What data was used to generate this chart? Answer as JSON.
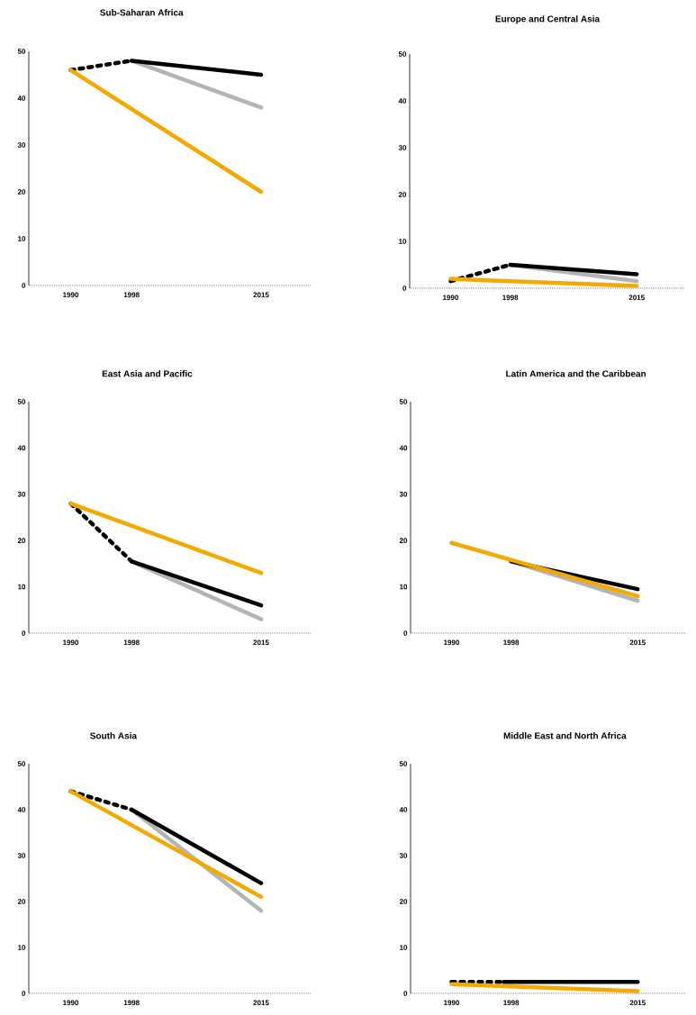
{
  "chart_data": [
    {
      "type": "line",
      "title": "Sub-Saharan Africa",
      "xlim": [
        1984.5,
        2021.5
      ],
      "ylim": [
        0,
        50
      ],
      "xticks": [
        1990,
        1998,
        2015
      ],
      "yticks": [
        0,
        10,
        20,
        30,
        40,
        50
      ],
      "series": [
        {
          "color": "#000000",
          "line_style": "dotted",
          "x": [
            1990,
            1998
          ],
          "values": [
            46,
            48
          ]
        },
        {
          "color": "#b4b4b4",
          "line_style": "solid",
          "x": [
            1998,
            2015
          ],
          "values": [
            48,
            38
          ]
        },
        {
          "color": "#000000",
          "line_style": "solid",
          "x": [
            1998,
            2015
          ],
          "values": [
            48,
            45
          ]
        },
        {
          "color": "#f5a800",
          "line_style": "solid",
          "x": [
            1990,
            2015
          ],
          "values": [
            46,
            20
          ]
        }
      ]
    },
    {
      "type": "line",
      "title": "Europe and Central Asia",
      "xlim": [
        1984.5,
        2021.5
      ],
      "ylim": [
        0,
        50
      ],
      "xticks": [
        1990,
        1998,
        2015
      ],
      "yticks": [
        0,
        10,
        20,
        30,
        40,
        50
      ],
      "series": [
        {
          "color": "#000000",
          "line_style": "dotted",
          "x": [
            1990,
            1998
          ],
          "values": [
            1.5,
            5
          ]
        },
        {
          "color": "#b4b4b4",
          "line_style": "solid",
          "x": [
            1998,
            2015
          ],
          "values": [
            5,
            1.5
          ]
        },
        {
          "color": "#000000",
          "line_style": "solid",
          "x": [
            1998,
            2015
          ],
          "values": [
            5,
            3
          ]
        },
        {
          "color": "#f5a800",
          "line_style": "solid",
          "x": [
            1990,
            2015
          ],
          "values": [
            2,
            0.5
          ]
        }
      ]
    },
    {
      "type": "line",
      "title": "East Asia and Pacific",
      "xlim": [
        1984.5,
        2021.5
      ],
      "ylim": [
        0,
        50
      ],
      "xticks": [
        1990,
        1998,
        2015
      ],
      "yticks": [
        0,
        10,
        20,
        30,
        40,
        50
      ],
      "series": [
        {
          "color": "#000000",
          "line_style": "dotted",
          "x": [
            1990,
            1998
          ],
          "values": [
            28,
            15.5
          ]
        },
        {
          "color": "#b4b4b4",
          "line_style": "solid",
          "x": [
            1998,
            2015
          ],
          "values": [
            15.5,
            3
          ]
        },
        {
          "color": "#000000",
          "line_style": "solid",
          "x": [
            1998,
            2015
          ],
          "values": [
            15.5,
            6
          ]
        },
        {
          "color": "#f5a800",
          "line_style": "solid",
          "x": [
            1990,
            2015
          ],
          "values": [
            28,
            13
          ]
        }
      ]
    },
    {
      "type": "line",
      "title": "Latin America and the Caribbean",
      "xlim": [
        1984.5,
        2021.5
      ],
      "ylim": [
        0,
        50
      ],
      "xticks": [
        1990,
        1998,
        2015
      ],
      "yticks": [
        0,
        10,
        20,
        30,
        40,
        50
      ],
      "series": [
        {
          "color": "#b4b4b4",
          "line_style": "solid",
          "x": [
            1998,
            2015
          ],
          "values": [
            15.5,
            7
          ]
        },
        {
          "color": "#000000",
          "line_style": "solid",
          "x": [
            1998,
            2015
          ],
          "values": [
            15.5,
            9.5
          ]
        },
        {
          "color": "#f5a800",
          "line_style": "solid",
          "x": [
            1990,
            2015
          ],
          "values": [
            19.5,
            8
          ]
        }
      ]
    },
    {
      "type": "line",
      "title": "South Asia",
      "xlim": [
        1984.5,
        2021.5
      ],
      "ylim": [
        0,
        50
      ],
      "xticks": [
        1990,
        1998,
        2015
      ],
      "yticks": [
        0,
        10,
        20,
        30,
        40,
        50
      ],
      "series": [
        {
          "color": "#000000",
          "line_style": "dotted",
          "x": [
            1990,
            1998
          ],
          "values": [
            44,
            40
          ]
        },
        {
          "color": "#b4b4b4",
          "line_style": "solid",
          "x": [
            1998,
            2015
          ],
          "values": [
            40,
            18
          ]
        },
        {
          "color": "#000000",
          "line_style": "solid",
          "x": [
            1998,
            2015
          ],
          "values": [
            40,
            24
          ]
        },
        {
          "color": "#f5a800",
          "line_style": "solid",
          "x": [
            1990,
            2015
          ],
          "values": [
            44,
            21
          ]
        }
      ]
    },
    {
      "type": "line",
      "title": "Middle East and North Africa",
      "xlim": [
        1984.5,
        2021.5
      ],
      "ylim": [
        0,
        50
      ],
      "xticks": [
        1990,
        1998,
        2015
      ],
      "yticks": [
        0,
        10,
        20,
        30,
        40,
        50
      ],
      "series": [
        {
          "color": "#000000",
          "line_style": "dotted",
          "x": [
            1990,
            1997
          ],
          "values": [
            2.5,
            2.5
          ]
        },
        {
          "color": "#f5a800",
          "line_style": "solid",
          "x": [
            1990,
            2015
          ],
          "values": [
            2,
            0.5
          ]
        },
        {
          "color": "#000000",
          "line_style": "solid",
          "x": [
            1997,
            2015
          ],
          "values": [
            2.5,
            2.5
          ]
        }
      ]
    }
  ]
}
